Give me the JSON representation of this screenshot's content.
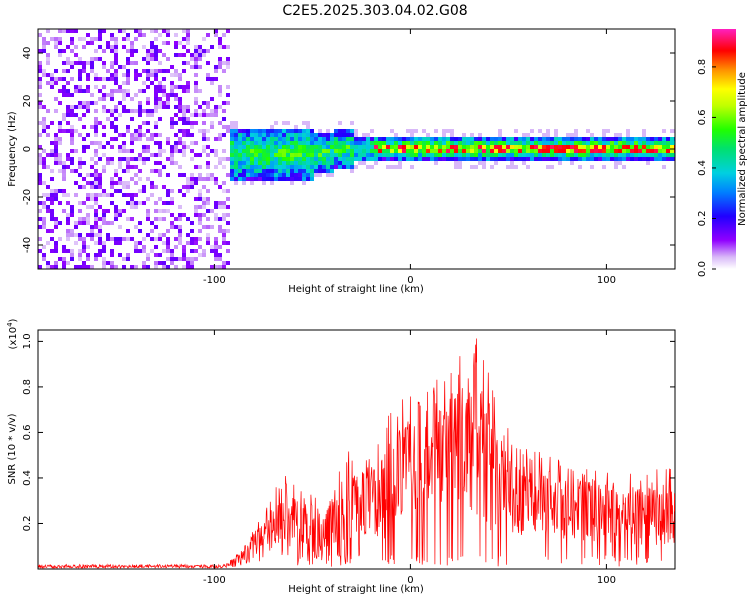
{
  "title": "C2E5.2025.303.04.02.G08",
  "chart_data": [
    {
      "type": "heatmap",
      "name": "spectrogram",
      "xlabel": "Height of straight line (km)",
      "ylabel": "Frequency (Hz)",
      "xlim": [
        -190,
        135
      ],
      "ylim": [
        -50,
        50
      ],
      "xticks": [
        -100,
        0,
        100
      ],
      "yticks": [
        -40,
        -20,
        0,
        20,
        40
      ],
      "noise_region_x": [
        -190,
        -93
      ],
      "signal_start_x": -93,
      "signal_band_hz": [
        -6,
        6
      ],
      "colorbar": {
        "label": "Normalized spectral amplitude",
        "range": [
          0,
          0.95
        ],
        "ticks": [
          0.0,
          0.2,
          0.4,
          0.6,
          0.8
        ],
        "colors": [
          "#ffffff",
          "#c8a8f0",
          "#8000ff",
          "#0000ff",
          "#00bfff",
          "#00ff80",
          "#00ff00",
          "#c8ff00",
          "#ffff00",
          "#ff8000",
          "#ff0000",
          "#ff00c0"
        ]
      }
    },
    {
      "type": "line",
      "name": "snr",
      "xlabel": "Height of straight line (km)",
      "ylabel": "SNR (10 * v/v)",
      "yscale_label": "(x10",
      "yscale_exp": "4",
      "yscale_close": ")",
      "xlim": [
        -190,
        135
      ],
      "ylim": [
        0,
        1.05
      ],
      "xticks": [
        -100,
        0,
        100
      ],
      "yticks": [
        0.2,
        0.4,
        0.6,
        0.8,
        1.0
      ],
      "color": "#ff0000",
      "envelope": {
        "x": [
          -190,
          -95,
          -85,
          -75,
          -65,
          -55,
          -45,
          -35,
          -25,
          -15,
          -5,
          5,
          15,
          25,
          35,
          45,
          55,
          70,
          90,
          110,
          135
        ],
        "mean": [
          0.01,
          0.01,
          0.05,
          0.14,
          0.2,
          0.16,
          0.13,
          0.21,
          0.27,
          0.33,
          0.42,
          0.47,
          0.52,
          0.58,
          0.55,
          0.38,
          0.31,
          0.28,
          0.26,
          0.24,
          0.24
        ],
        "peak": [
          0.02,
          0.02,
          0.1,
          0.25,
          0.42,
          0.35,
          0.3,
          0.5,
          0.55,
          0.62,
          0.78,
          0.8,
          0.85,
          0.98,
          1.05,
          0.7,
          0.55,
          0.5,
          0.45,
          0.42,
          0.45
        ]
      }
    }
  ]
}
